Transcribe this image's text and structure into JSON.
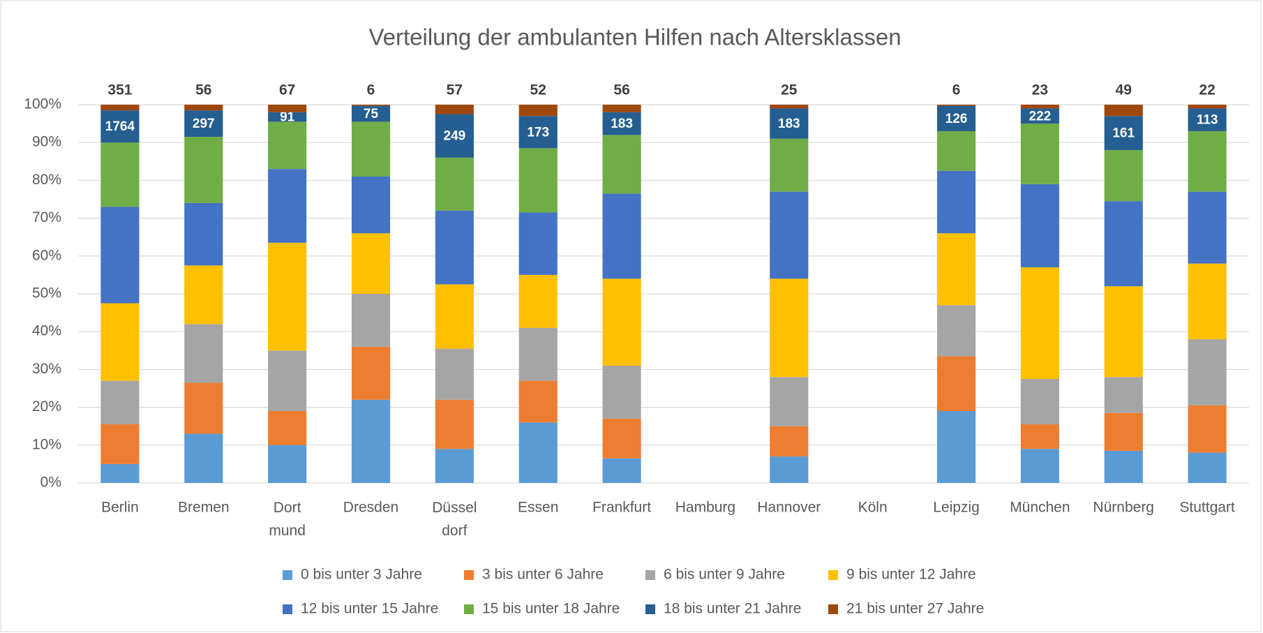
{
  "chart_data": {
    "type": "stacked_bar_percent",
    "title": "Verteilung der ambulanten Hilfen nach Altersklassen",
    "categories": [
      "Berlin",
      "Bremen",
      "Dort mund",
      "Dresden",
      "Düssel dorf",
      "Essen",
      "Frankfurt",
      "Hamburg",
      "Hannover",
      "Köln",
      "Leipzig",
      "München",
      "Nürnberg",
      "Stuttgart"
    ],
    "ylim": [
      0,
      100
    ],
    "yticks": [
      {
        "value": 0,
        "label": "0%"
      },
      {
        "value": 10,
        "label": "10%"
      },
      {
        "value": 20,
        "label": "20%"
      },
      {
        "value": 30,
        "label": "30%"
      },
      {
        "value": 40,
        "label": "40%"
      },
      {
        "value": 50,
        "label": "50%"
      },
      {
        "value": 60,
        "label": "60%"
      },
      {
        "value": 70,
        "label": "70%"
      },
      {
        "value": 80,
        "label": "80%"
      },
      {
        "value": 90,
        "label": "90%"
      },
      {
        "value": 100,
        "label": "100%"
      }
    ],
    "grid": true,
    "legend": "bottom",
    "series": [
      {
        "name": "0 bis unter 3 Jahre",
        "color": "#5b9bd5",
        "values": [
          5,
          13,
          10,
          22,
          9,
          16,
          6.5,
          null,
          7,
          null,
          19,
          9,
          8.5,
          8
        ]
      },
      {
        "name": "3 bis unter 6 Jahre",
        "color": "#ed7d31",
        "values": [
          10.5,
          13.5,
          9,
          14,
          13,
          11,
          10.5,
          null,
          8,
          null,
          14.5,
          6.5,
          10,
          12.5
        ]
      },
      {
        "name": "6 bis unter 9 Jahre",
        "color": "#a5a5a5",
        "values": [
          11.5,
          15.5,
          16,
          14,
          13.5,
          14,
          14,
          null,
          13,
          null,
          13.5,
          12,
          9.5,
          17.5
        ]
      },
      {
        "name": "9 bis unter 12 Jahre",
        "color": "#ffc000",
        "values": [
          20.5,
          15.5,
          28.5,
          16,
          17,
          14,
          23,
          null,
          26,
          null,
          19,
          29.5,
          24,
          20
        ]
      },
      {
        "name": "12 bis unter 15 Jahre",
        "color": "#4472c4",
        "values": [
          25.5,
          16.5,
          19.5,
          15,
          19.5,
          16.5,
          22.5,
          null,
          23,
          null,
          16.5,
          22,
          22.5,
          19
        ]
      },
      {
        "name": "15 bis unter 18 Jahre",
        "color": "#70ad47",
        "values": [
          17,
          17.5,
          12.5,
          14.5,
          14,
          17,
          15.5,
          null,
          14,
          null,
          10.5,
          16,
          13.5,
          16
        ]
      },
      {
        "name": "18 bis unter 21 Jahre",
        "color": "#255e91",
        "values": [
          8.5,
          7,
          2.5,
          4.2,
          11.5,
          8.5,
          6,
          null,
          8,
          null,
          6.7,
          4,
          9,
          6
        ],
        "counts": [
          1764,
          297,
          91,
          75,
          249,
          173,
          183,
          null,
          183,
          null,
          126,
          222,
          161,
          113
        ]
      },
      {
        "name": "21 bis unter 27 Jahre",
        "color": "#9e480e",
        "values": [
          1.5,
          1.5,
          2,
          0.3,
          2.5,
          3,
          2,
          null,
          1,
          null,
          0.3,
          1,
          3,
          1
        ],
        "counts": [
          351,
          56,
          67,
          6,
          57,
          52,
          56,
          null,
          25,
          null,
          6,
          23,
          49,
          22
        ]
      }
    ]
  }
}
